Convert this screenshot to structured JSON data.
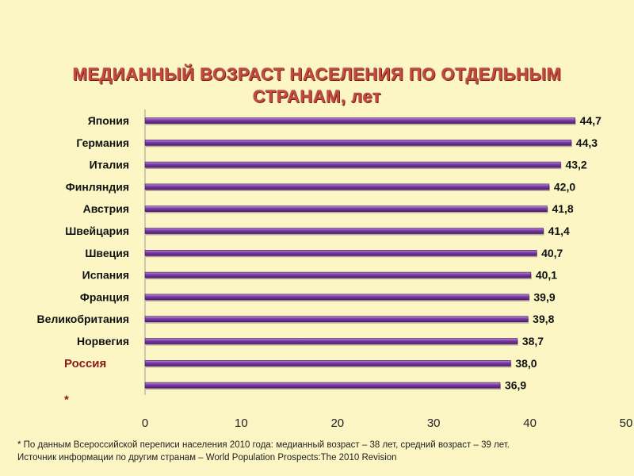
{
  "chart_data": {
    "type": "bar",
    "orientation": "horizontal",
    "title_line1": "МЕДИАННЫЙ ВОЗРАСТ НАСЕЛЕНИЯ ПО ОТДЕЛЬНЫМ",
    "title_line2": "СТРАНАМ, лет",
    "categories": [
      "Япония",
      "Германия",
      "Италия",
      "Финляндия",
      "Австрия",
      "Швейцария",
      "Швеция",
      "Испания",
      "Франция",
      "Великобритания",
      "Норвегия",
      "Россия",
      ""
    ],
    "values": [
      44.7,
      44.3,
      43.2,
      42.0,
      41.8,
      41.4,
      40.7,
      40.1,
      39.9,
      39.8,
      38.7,
      38.0,
      36.9
    ],
    "value_labels": [
      "44,7",
      "44,3",
      "43,2",
      "42,0",
      "41,8",
      "41,4",
      "40,7",
      "40,1",
      "39,9",
      "39,8",
      "38,7",
      "38,0",
      "36,9"
    ],
    "russia_marker": "*",
    "highlight_category": "Россия",
    "xlim": [
      0,
      50
    ],
    "xticks": [
      0,
      10,
      20,
      30,
      40,
      50
    ],
    "xticklabels": [
      "0",
      "10",
      "20",
      "30",
      "40",
      "50"
    ],
    "grid": false,
    "bar_color": "#7d3aa6",
    "highlight_color": "#8b1a1a"
  },
  "footnotes": {
    "line1": "* По данным Всероссийской переписи населения 2010 года: медианный возраст – 38 лет, средний возраст – 39 лет.",
    "line2": "Источник информации по другим странам – World Population Prospects:The 2010 Revision"
  }
}
